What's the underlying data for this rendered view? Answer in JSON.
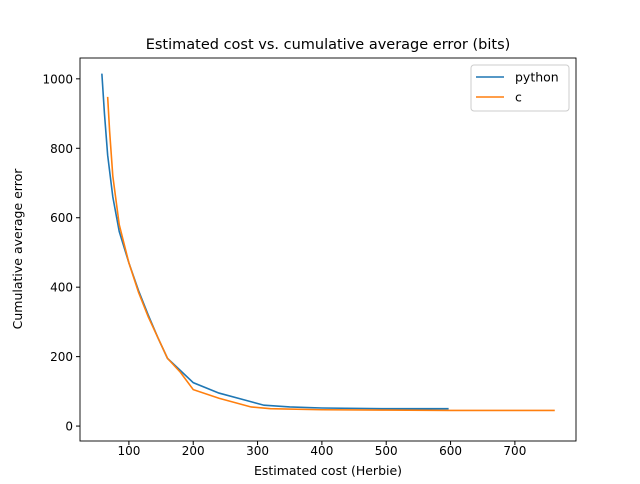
{
  "chart_data": {
    "type": "line",
    "title": "Estimated cost vs. cumulative average error (bits)",
    "xlabel": "Estimated cost (Herbie)",
    "ylabel": "Cumulative average error",
    "xlim": [
      24,
      795
    ],
    "ylim": [
      -43,
      1060
    ],
    "xticks": [
      100,
      200,
      300,
      400,
      500,
      600,
      700
    ],
    "yticks": [
      0,
      200,
      400,
      600,
      800,
      1000
    ],
    "grid": false,
    "legend_position": "top-right",
    "series": [
      {
        "name": "python",
        "color": "#1f77b4",
        "points": [
          [
            58,
            1015
          ],
          [
            62,
            900
          ],
          [
            67,
            780
          ],
          [
            75,
            660
          ],
          [
            85,
            560
          ],
          [
            100,
            470
          ],
          [
            115,
            390
          ],
          [
            130,
            320
          ],
          [
            145,
            255
          ],
          [
            160,
            195
          ],
          [
            180,
            160
          ],
          [
            200,
            125
          ],
          [
            240,
            95
          ],
          [
            280,
            75
          ],
          [
            310,
            60
          ],
          [
            350,
            55
          ],
          [
            400,
            52
          ],
          [
            500,
            50
          ],
          [
            597,
            50
          ]
        ]
      },
      {
        "name": "c",
        "color": "#ff7f0e",
        "points": [
          [
            67,
            948
          ],
          [
            70,
            850
          ],
          [
            75,
            720
          ],
          [
            85,
            580
          ],
          [
            100,
            470
          ],
          [
            115,
            385
          ],
          [
            130,
            315
          ],
          [
            145,
            255
          ],
          [
            160,
            195
          ],
          [
            180,
            155
          ],
          [
            200,
            105
          ],
          [
            240,
            80
          ],
          [
            290,
            55
          ],
          [
            320,
            50
          ],
          [
            400,
            47
          ],
          [
            500,
            46
          ],
          [
            600,
            45
          ],
          [
            700,
            45
          ],
          [
            762,
            45
          ]
        ]
      }
    ]
  }
}
